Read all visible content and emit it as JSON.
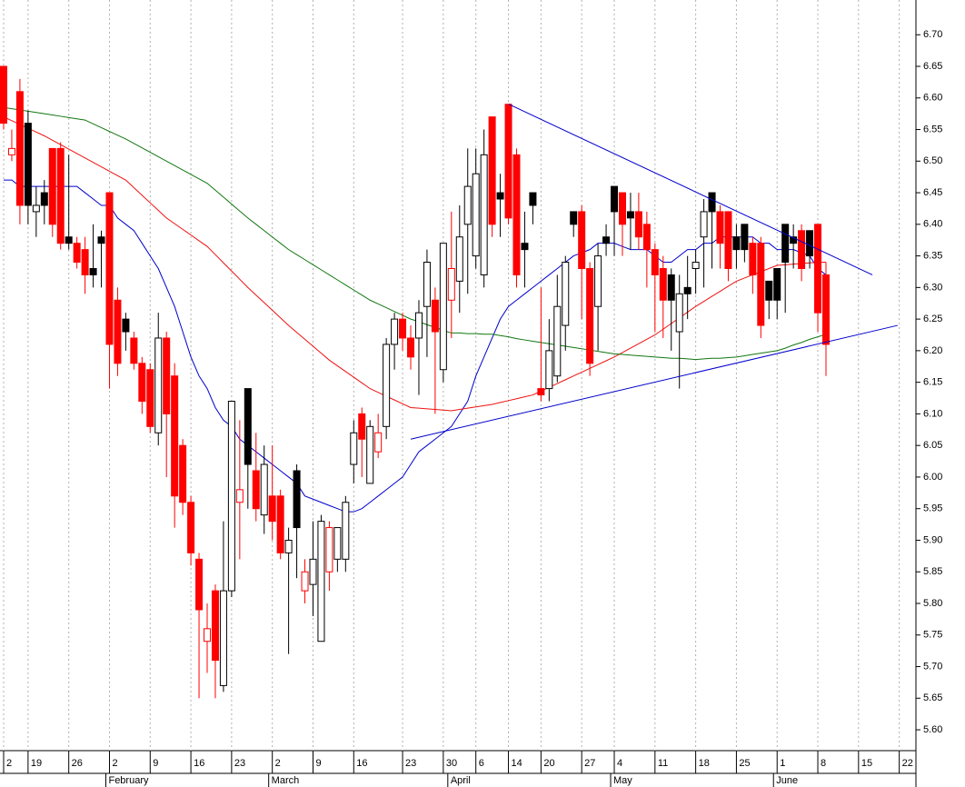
{
  "chart_data": {
    "type": "candlestick",
    "categories": [
      "2",
      null,
      null,
      "19",
      null,
      null,
      null,
      null,
      "26",
      null,
      null,
      null,
      null,
      "2",
      null,
      null,
      null,
      null,
      "9",
      null,
      null,
      null,
      null,
      "16",
      null,
      null,
      null,
      null,
      "23",
      null,
      null,
      null,
      null,
      "2",
      null,
      null,
      null,
      null,
      "9",
      null,
      null,
      null,
      null,
      "16",
      null,
      null,
      null,
      null,
      null,
      "23",
      null,
      null,
      null,
      null,
      "30",
      null,
      null,
      null,
      "6",
      null,
      null,
      null,
      "14",
      null,
      null,
      null,
      "20",
      null,
      null,
      null,
      null,
      "27",
      null,
      null,
      null,
      "4",
      null,
      null,
      null,
      null,
      "11",
      null,
      null,
      null,
      null,
      "18",
      null,
      null,
      null,
      null,
      "25",
      null,
      null,
      null,
      null,
      "1",
      null,
      null,
      null,
      null,
      "8",
      null,
      null,
      null,
      null,
      "15",
      null,
      null,
      null,
      null,
      "22"
    ],
    "month_labels": [
      null,
      null,
      null,
      null,
      null,
      null,
      null,
      null,
      null,
      null,
      null,
      null,
      null,
      "February",
      null,
      null,
      null,
      null,
      null,
      null,
      null,
      null,
      null,
      null,
      null,
      null,
      null,
      null,
      null,
      null,
      null,
      null,
      null,
      "March",
      null,
      null,
      null,
      null,
      null,
      null,
      null,
      null,
      null,
      null,
      null,
      null,
      null,
      null,
      null,
      null,
      null,
      null,
      null,
      null,
      null,
      "April",
      null,
      null,
      null,
      null,
      null,
      null,
      null,
      null,
      null,
      null,
      null,
      null,
      null,
      null,
      null,
      null,
      null,
      null,
      null,
      "May",
      null,
      null,
      null,
      null,
      null,
      null,
      null,
      null,
      null,
      null,
      null,
      null,
      null,
      null,
      null,
      null,
      null,
      null,
      null,
      "June",
      null,
      null,
      null,
      null,
      null,
      null,
      null,
      null,
      null,
      null,
      null,
      null,
      null,
      null,
      null
    ],
    "open": [
      6.65,
      6.51,
      6.61,
      6.56,
      6.42,
      6.45,
      6.52,
      6.52,
      6.38,
      6.37,
      6.36,
      6.33,
      6.38,
      6.45,
      6.28,
      6.25,
      6.22,
      6.18,
      6.17,
      6.07,
      6.22,
      6.16,
      6.05,
      5.96,
      5.87,
      5.74,
      5.82,
      5.67,
      5.82,
      5.96,
      6.14,
      6.01,
      5.94,
      5.97,
      5.97,
      5.88,
      6.01,
      5.82,
      5.83,
      5.74,
      5.85,
      5.87,
      5.87,
      6.02,
      6.1,
      5.99,
      6.04,
      6.08,
      6.21,
      6.25,
      6.22,
      6.22,
      6.27,
      6.28,
      6.17,
      6.28,
      6.31,
      6.4,
      6.35,
      6.32,
      6.57,
      6.45,
      6.59,
      6.51,
      6.37,
      6.45,
      6.14,
      6.14,
      6.16,
      6.24,
      6.42,
      6.42,
      6.33,
      6.27,
      6.38,
      6.46,
      6.45,
      6.42,
      6.42,
      6.4,
      6.36,
      6.33,
      6.32,
      6.23,
      6.3,
      6.33,
      6.38,
      6.45,
      6.42,
      6.42,
      6.38,
      6.4,
      6.37,
      6.37,
      6.31,
      6.33,
      6.4,
      6.38,
      6.39,
      6.39,
      6.4,
      6.32,
      null,
      null,
      null,
      null,
      null,
      null,
      null,
      null,
      null
    ],
    "high": [
      6.65,
      6.55,
      6.63,
      6.58,
      6.46,
      6.47,
      6.52,
      6.53,
      6.51,
      6.38,
      6.38,
      6.4,
      6.39,
      6.45,
      6.3,
      6.26,
      6.23,
      6.19,
      6.18,
      6.26,
      6.23,
      6.18,
      6.06,
      5.97,
      5.88,
      5.8,
      5.83,
      5.93,
      6.12,
      6.09,
      6.14,
      6.07,
      6.05,
      6.05,
      5.98,
      5.92,
      6.02,
      5.87,
      5.93,
      5.94,
      5.93,
      5.92,
      5.97,
      6.09,
      6.11,
      6.09,
      6.1,
      6.22,
      6.26,
      6.26,
      6.24,
      6.28,
      6.36,
      6.3,
      6.37,
      6.42,
      6.43,
      6.52,
      6.52,
      6.55,
      6.57,
      6.48,
      6.59,
      6.52,
      6.42,
      6.45,
      6.3,
      6.25,
      6.32,
      6.35,
      6.42,
      6.43,
      6.34,
      6.37,
      6.4,
      6.46,
      6.45,
      6.45,
      6.45,
      6.42,
      6.37,
      6.35,
      6.33,
      6.32,
      6.35,
      6.36,
      6.44,
      6.45,
      6.43,
      6.42,
      6.4,
      6.4,
      6.38,
      6.38,
      6.31,
      6.33,
      6.4,
      6.4,
      6.4,
      6.39,
      6.4,
      6.34,
      null,
      null,
      null,
      null,
      null,
      null,
      null,
      null,
      null
    ],
    "low": [
      6.55,
      6.5,
      6.4,
      6.4,
      6.38,
      6.4,
      6.38,
      6.36,
      6.36,
      6.33,
      6.29,
      6.3,
      6.3,
      6.14,
      6.16,
      6.2,
      6.17,
      6.1,
      6.07,
      6.05,
      6.0,
      5.92,
      5.94,
      5.86,
      5.65,
      5.69,
      5.65,
      5.66,
      5.81,
      5.87,
      5.95,
      5.93,
      5.91,
      5.9,
      5.87,
      5.72,
      5.84,
      5.8,
      5.78,
      5.74,
      5.82,
      5.85,
      5.85,
      5.99,
      6.0,
      5.99,
      6.03,
      6.06,
      6.17,
      6.2,
      6.17,
      6.13,
      6.19,
      6.1,
      6.15,
      6.22,
      6.26,
      6.29,
      6.33,
      6.3,
      6.38,
      6.38,
      6.4,
      6.3,
      6.3,
      6.4,
      6.12,
      6.12,
      6.15,
      6.2,
      6.38,
      6.25,
      6.16,
      6.2,
      6.35,
      6.35,
      6.35,
      6.36,
      6.36,
      6.3,
      6.23,
      6.22,
      6.2,
      6.14,
      6.25,
      6.29,
      6.3,
      6.33,
      6.33,
      6.31,
      6.33,
      6.34,
      6.29,
      6.22,
      6.25,
      6.25,
      6.26,
      6.33,
      6.31,
      6.33,
      6.23,
      6.16,
      null,
      null,
      null,
      null,
      null,
      null,
      null,
      null,
      null
    ],
    "close": [
      6.56,
      6.52,
      6.43,
      6.43,
      6.43,
      6.43,
      6.4,
      6.37,
      6.37,
      6.34,
      6.32,
      6.32,
      6.37,
      6.21,
      6.18,
      6.23,
      6.18,
      6.12,
      6.08,
      6.22,
      6.1,
      5.97,
      5.96,
      5.88,
      5.79,
      5.76,
      5.71,
      5.82,
      6.12,
      5.98,
      6.02,
      5.95,
      6.02,
      5.93,
      5.88,
      5.9,
      5.92,
      5.85,
      5.87,
      5.93,
      5.92,
      5.92,
      5.96,
      6.07,
      6.06,
      6.08,
      6.07,
      6.21,
      6.25,
      6.22,
      6.19,
      6.26,
      6.34,
      6.23,
      6.37,
      6.33,
      6.38,
      6.46,
      6.48,
      6.51,
      6.4,
      6.44,
      6.41,
      6.32,
      6.36,
      6.43,
      6.13,
      6.2,
      6.27,
      6.34,
      6.4,
      6.33,
      6.18,
      6.35,
      6.37,
      6.42,
      6.4,
      6.41,
      6.38,
      6.36,
      6.32,
      6.28,
      6.28,
      6.29,
      6.29,
      6.34,
      6.42,
      6.42,
      6.37,
      6.33,
      6.36,
      6.36,
      6.32,
      6.24,
      6.28,
      6.28,
      6.34,
      6.37,
      6.33,
      6.35,
      6.26,
      6.21,
      null,
      null,
      null,
      null,
      null,
      null,
      null,
      null,
      null
    ],
    "up_color": "#000000",
    "down_color": "#ff0000",
    "lines": [
      {
        "color": "#0000cc",
        "values": [
          6.47,
          6.47,
          6.46,
          6.46,
          6.46,
          6.46,
          6.46,
          6.46,
          6.46,
          6.46,
          6.45,
          6.44,
          6.43,
          6.43,
          6.41,
          6.4,
          6.39,
          6.37,
          6.35,
          6.33,
          6.3,
          6.27,
          6.23,
          6.19,
          6.16,
          6.14,
          6.11,
          6.09,
          6.08,
          6.06,
          6.05,
          6.04,
          6.03,
          6.02,
          6.01,
          6.0,
          5.99,
          5.97,
          5.965,
          5.96,
          5.955,
          5.95,
          5.945,
          5.945,
          5.95,
          5.96,
          5.97,
          5.98,
          5.99,
          6.0,
          6.02,
          6.04,
          6.05,
          6.06,
          6.07,
          6.08,
          6.1,
          6.12,
          6.16,
          6.19,
          6.22,
          6.25,
          6.27,
          6.28,
          6.29,
          6.3,
          6.31,
          6.32,
          6.33,
          6.34,
          6.35,
          6.355,
          6.36,
          6.37,
          6.37,
          6.37,
          6.365,
          6.36,
          6.36,
          6.36,
          6.35,
          6.34,
          6.34,
          6.35,
          6.36,
          6.36,
          6.37,
          6.37,
          6.38,
          6.38,
          6.38,
          6.38,
          6.38,
          6.37,
          6.37,
          6.36,
          6.36,
          6.36,
          6.355,
          6.35,
          6.33,
          6.32,
          null,
          null,
          null,
          null,
          null,
          null,
          null,
          null,
          null
        ]
      },
      {
        "color": "#ee1111",
        "values": [
          6.57,
          6.564,
          6.558,
          6.552,
          6.546,
          6.54,
          6.533,
          6.526,
          6.519,
          6.512,
          6.505,
          6.498,
          6.491,
          6.484,
          6.477,
          6.47,
          6.458,
          6.446,
          6.434,
          6.422,
          6.41,
          6.401,
          6.392,
          6.383,
          6.374,
          6.365,
          6.352,
          6.339,
          6.326,
          6.313,
          6.3,
          6.288,
          6.276,
          6.264,
          6.252,
          6.24,
          6.229,
          6.218,
          6.207,
          6.196,
          6.185,
          6.176,
          6.167,
          6.158,
          6.149,
          6.14,
          6.134,
          6.128,
          6.122,
          6.116,
          6.11,
          6.109,
          6.108,
          6.107,
          6.106,
          6.105,
          6.107,
          6.109,
          6.111,
          6.113,
          6.115,
          6.118,
          6.121,
          6.124,
          6.127,
          6.13,
          6.136,
          6.142,
          6.148,
          6.154,
          6.16,
          6.166,
          6.172,
          6.178,
          6.184,
          6.19,
          6.197,
          6.204,
          6.211,
          6.218,
          6.225,
          6.234,
          6.243,
          6.252,
          6.261,
          6.27,
          6.278,
          6.286,
          6.294,
          6.302,
          6.31,
          6.315,
          6.32,
          6.325,
          6.33,
          6.335,
          6.336,
          6.337,
          6.338,
          6.339,
          6.34,
          6.34,
          null,
          null,
          null,
          null,
          null,
          null,
          null,
          null,
          null
        ]
      },
      {
        "color": "#117711",
        "values": [
          6.585,
          6.583,
          6.581,
          6.579,
          6.577,
          6.575,
          6.573,
          6.571,
          6.569,
          6.567,
          6.565,
          6.559,
          6.553,
          6.547,
          6.541,
          6.535,
          6.528,
          6.521,
          6.514,
          6.507,
          6.5,
          6.493,
          6.486,
          6.479,
          6.472,
          6.465,
          6.454,
          6.443,
          6.432,
          6.421,
          6.41,
          6.4,
          6.39,
          6.38,
          6.37,
          6.36,
          6.352,
          6.344,
          6.336,
          6.328,
          6.32,
          6.312,
          6.304,
          6.296,
          6.288,
          6.28,
          6.274,
          6.268,
          6.262,
          6.256,
          6.25,
          6.246,
          6.241,
          6.237,
          6.232,
          6.228,
          6.228,
          6.227,
          6.227,
          6.226,
          6.226,
          6.224,
          6.222,
          6.219,
          6.217,
          6.215,
          6.213,
          6.211,
          6.209,
          6.207,
          6.205,
          6.203,
          6.201,
          6.199,
          6.197,
          6.195,
          6.194,
          6.193,
          6.192,
          6.191,
          6.19,
          6.189,
          6.188,
          6.188,
          6.187,
          6.186,
          6.187,
          6.188,
          6.188,
          6.189,
          6.19,
          6.192,
          6.194,
          6.196,
          6.198,
          6.2,
          6.204,
          6.209,
          6.213,
          6.218,
          6.222,
          6.226,
          null,
          null,
          null,
          null,
          null,
          null,
          null,
          null,
          null
        ]
      }
    ],
    "trendlines": [
      {
        "color": "#0000cc",
        "x": [
          62.05,
          106.7
        ],
        "values": [
          6.59,
          6.32
        ]
      },
      {
        "color": "#0000cc",
        "x": [
          50.0,
          109.8
        ],
        "values": [
          6.06,
          6.24
        ]
      }
    ],
    "xlim": [
      -0.446,
      112.05
    ],
    "ylim": [
      5.567,
      6.755
    ],
    "yticks": [
      {
        "value": 5.6,
        "label": "5.60"
      },
      5.65,
      {
        "value": 5.7,
        "label": "5.70"
      },
      5.75,
      {
        "value": 5.8,
        "label": "5.80"
      },
      5.85,
      {
        "value": 5.9,
        "label": "5.90"
      },
      5.95,
      {
        "value": 6,
        "label": "6.00"
      },
      6.05,
      {
        "value": 6.1,
        "label": "6.10"
      },
      6.15,
      {
        "value": 6.2,
        "label": "6.20"
      },
      6.25,
      {
        "value": 6.3,
        "label": "6.30"
      },
      6.35,
      {
        "value": 6.4,
        "label": "6.40"
      },
      6.45,
      {
        "value": 6.5,
        "label": "6.50"
      },
      6.55,
      {
        "value": 6.6,
        "label": "6.60"
      },
      6.65,
      {
        "value": 6.7,
        "label": "6.70"
      }
    ],
    "grid": true
  }
}
